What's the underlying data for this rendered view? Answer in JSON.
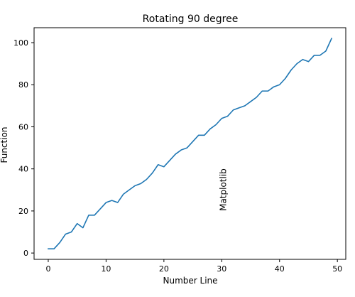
{
  "chart_data": {
    "type": "line",
    "title": "Rotating 90 degree",
    "xlabel": "Number Line",
    "ylabel": "Function",
    "xlim": [
      -2.45,
      51.45
    ],
    "ylim": [
      -3.0,
      107.1
    ],
    "xticks": [
      0,
      10,
      20,
      30,
      40,
      50
    ],
    "yticks": [
      0,
      20,
      40,
      60,
      80,
      100
    ],
    "grid": false,
    "line_color": "#1f77b4",
    "annotation": {
      "text": "Matplotlib",
      "x": 31,
      "y": 20,
      "rotation_degrees": 90
    },
    "x": [
      0,
      1,
      2,
      3,
      4,
      5,
      6,
      7,
      8,
      9,
      10,
      11,
      12,
      13,
      14,
      15,
      16,
      17,
      18,
      19,
      20,
      21,
      22,
      23,
      24,
      25,
      26,
      27,
      28,
      29,
      30,
      31,
      32,
      33,
      34,
      35,
      36,
      37,
      38,
      39,
      40,
      41,
      42,
      43,
      44,
      45,
      46,
      47,
      48,
      49
    ],
    "y": [
      2,
      2,
      5,
      9,
      10,
      14,
      12,
      18,
      18,
      21,
      24,
      25,
      24,
      28,
      30,
      32,
      33,
      35,
      38,
      42,
      41,
      44,
      47,
      49,
      50,
      53,
      56,
      56,
      59,
      61,
      64,
      65,
      68,
      69,
      70,
      72,
      74,
      77,
      77,
      79,
      80,
      83,
      87,
      90,
      92,
      91,
      94,
      94,
      96,
      102
    ]
  }
}
